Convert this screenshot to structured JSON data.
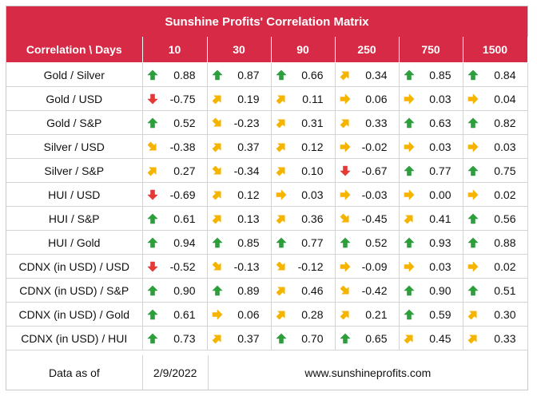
{
  "title": "Sunshine Profits' Correlation Matrix",
  "header": {
    "corner": "Correlation \\ Days",
    "days": [
      "10",
      "30",
      "90",
      "250",
      "750",
      "1500"
    ]
  },
  "colors": {
    "header_bg": "#d62a46",
    "arrow_up": "#2e9e3c",
    "arrow_down": "#e53935",
    "arrow_side": "#f4b400"
  },
  "rows": [
    {
      "label": "Gold / Silver",
      "cells": [
        {
          "v": "0.88",
          "a": "up"
        },
        {
          "v": "0.87",
          "a": "up"
        },
        {
          "v": "0.66",
          "a": "up"
        },
        {
          "v": "0.34",
          "a": "ne"
        },
        {
          "v": "0.85",
          "a": "up"
        },
        {
          "v": "0.84",
          "a": "up"
        }
      ]
    },
    {
      "label": "Gold / USD",
      "cells": [
        {
          "v": "-0.75",
          "a": "down"
        },
        {
          "v": "0.19",
          "a": "ne"
        },
        {
          "v": "0.11",
          "a": "ne"
        },
        {
          "v": "0.06",
          "a": "right"
        },
        {
          "v": "0.03",
          "a": "right"
        },
        {
          "v": "0.04",
          "a": "right"
        }
      ]
    },
    {
      "label": "Gold / S&P",
      "cells": [
        {
          "v": "0.52",
          "a": "up"
        },
        {
          "v": "-0.23",
          "a": "se"
        },
        {
          "v": "0.31",
          "a": "ne"
        },
        {
          "v": "0.33",
          "a": "ne"
        },
        {
          "v": "0.63",
          "a": "up"
        },
        {
          "v": "0.82",
          "a": "up"
        }
      ]
    },
    {
      "label": "Silver / USD",
      "cells": [
        {
          "v": "-0.38",
          "a": "se"
        },
        {
          "v": "0.37",
          "a": "ne"
        },
        {
          "v": "0.12",
          "a": "ne"
        },
        {
          "v": "-0.02",
          "a": "right"
        },
        {
          "v": "0.03",
          "a": "right"
        },
        {
          "v": "0.03",
          "a": "right"
        }
      ]
    },
    {
      "label": "Silver / S&P",
      "cells": [
        {
          "v": "0.27",
          "a": "ne"
        },
        {
          "v": "-0.34",
          "a": "se"
        },
        {
          "v": "0.10",
          "a": "ne"
        },
        {
          "v": "-0.67",
          "a": "down"
        },
        {
          "v": "0.77",
          "a": "up"
        },
        {
          "v": "0.75",
          "a": "up"
        }
      ]
    },
    {
      "label": "HUI / USD",
      "cells": [
        {
          "v": "-0.69",
          "a": "down"
        },
        {
          "v": "0.12",
          "a": "ne"
        },
        {
          "v": "0.03",
          "a": "right"
        },
        {
          "v": "-0.03",
          "a": "right"
        },
        {
          "v": "0.00",
          "a": "right"
        },
        {
          "v": "0.02",
          "a": "right"
        }
      ]
    },
    {
      "label": "HUI / S&P",
      "cells": [
        {
          "v": "0.61",
          "a": "up"
        },
        {
          "v": "0.13",
          "a": "ne"
        },
        {
          "v": "0.36",
          "a": "ne"
        },
        {
          "v": "-0.45",
          "a": "se"
        },
        {
          "v": "0.41",
          "a": "ne"
        },
        {
          "v": "0.56",
          "a": "up"
        }
      ]
    },
    {
      "label": "HUI / Gold",
      "cells": [
        {
          "v": "0.94",
          "a": "up"
        },
        {
          "v": "0.85",
          "a": "up"
        },
        {
          "v": "0.77",
          "a": "up"
        },
        {
          "v": "0.52",
          "a": "up"
        },
        {
          "v": "0.93",
          "a": "up"
        },
        {
          "v": "0.88",
          "a": "up"
        }
      ]
    },
    {
      "label": "CDNX (in USD) / USD",
      "cells": [
        {
          "v": "-0.52",
          "a": "down"
        },
        {
          "v": "-0.13",
          "a": "se"
        },
        {
          "v": "-0.12",
          "a": "se"
        },
        {
          "v": "-0.09",
          "a": "right"
        },
        {
          "v": "0.03",
          "a": "right"
        },
        {
          "v": "0.02",
          "a": "right"
        }
      ]
    },
    {
      "label": "CDNX (in USD) / S&P",
      "cells": [
        {
          "v": "0.90",
          "a": "up"
        },
        {
          "v": "0.89",
          "a": "up"
        },
        {
          "v": "0.46",
          "a": "ne"
        },
        {
          "v": "-0.42",
          "a": "se"
        },
        {
          "v": "0.90",
          "a": "up"
        },
        {
          "v": "0.51",
          "a": "up"
        }
      ]
    },
    {
      "label": "CDNX (in USD) / Gold",
      "cells": [
        {
          "v": "0.61",
          "a": "up"
        },
        {
          "v": "0.06",
          "a": "right"
        },
        {
          "v": "0.28",
          "a": "ne"
        },
        {
          "v": "0.21",
          "a": "ne"
        },
        {
          "v": "0.59",
          "a": "up"
        },
        {
          "v": "0.30",
          "a": "ne"
        }
      ]
    },
    {
      "label": "CDNX (in USD) / HUI",
      "cells": [
        {
          "v": "0.73",
          "a": "up"
        },
        {
          "v": "0.37",
          "a": "ne"
        },
        {
          "v": "0.70",
          "a": "up"
        },
        {
          "v": "0.65",
          "a": "up"
        },
        {
          "v": "0.45",
          "a": "ne"
        },
        {
          "v": "0.33",
          "a": "ne"
        }
      ]
    }
  ],
  "footer": {
    "label": "Data as of",
    "date": "2/9/2022",
    "website": "www.sunshineprofits.com"
  }
}
